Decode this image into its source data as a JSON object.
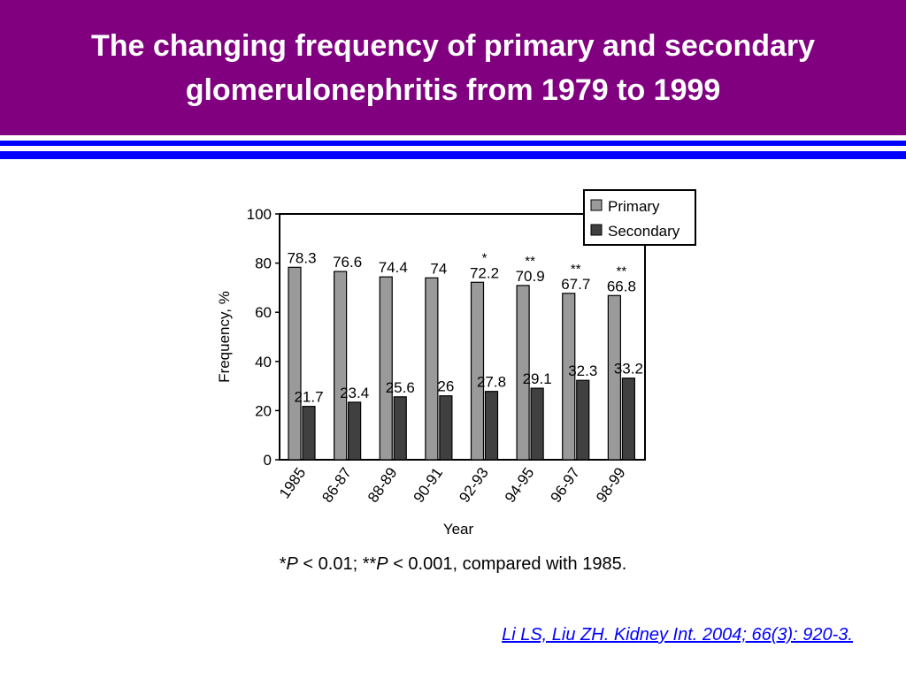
{
  "slide": {
    "title": "The changing frequency of primary and secondary glomerulonephritis from 1979 to 1999",
    "footnote": {
      "star1": "*",
      "p1": "P",
      "text1": " < 0.01; ",
      "star2": "**",
      "p2": "P",
      "text2": " < 0.001, compared with 1985."
    },
    "citation": "Li LS, Liu ZH. Kidney Int. 2004; 66(3): 920-3."
  },
  "colors": {
    "header_bg": "#800080",
    "rule": "#0000ff",
    "primary": "#9a9a9a",
    "secondary": "#404040"
  },
  "chart_data": {
    "type": "bar",
    "xlabel": "Year",
    "ylabel": "Frequency, %",
    "ylim": [
      0,
      100
    ],
    "yticks": [
      0,
      20,
      40,
      60,
      80,
      100
    ],
    "categories": [
      "1985",
      "86-87",
      "88-89",
      "90-91",
      "92-93",
      "94-95",
      "96-97",
      "98-99"
    ],
    "series": [
      {
        "name": "Primary",
        "values": [
          78.3,
          76.6,
          74.4,
          74,
          72.2,
          70.9,
          67.7,
          66.8
        ]
      },
      {
        "name": "Secondary",
        "values": [
          21.7,
          23.4,
          25.6,
          26,
          27.8,
          29.1,
          32.3,
          33.2
        ]
      }
    ],
    "primary_labels": [
      "78.3",
      "76.6",
      "74.4",
      "74",
      "72.2",
      "70.9",
      "67.7",
      "66.8"
    ],
    "secondary_labels": [
      "21.7",
      "23.4",
      "25.6",
      "26",
      "27.8",
      "29.1",
      "32.3",
      "33.2"
    ],
    "significance_marks": [
      "",
      "",
      "",
      "",
      "*",
      "**",
      "**",
      "**"
    ],
    "legend_position": "top-right",
    "grid": false
  }
}
